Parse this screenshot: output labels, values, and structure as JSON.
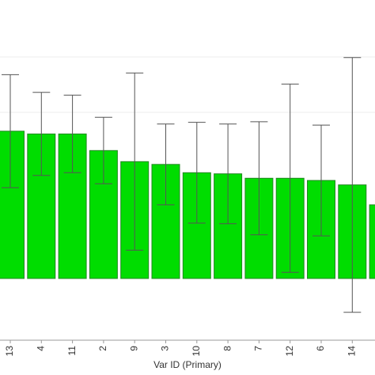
{
  "chart_data": {
    "type": "bar",
    "x_label": "Var ID (Primary)",
    "categories": [
      "13",
      "4",
      "11",
      "2",
      "9",
      "3",
      "10",
      "8",
      "7",
      "12",
      "6",
      "14",
      null
    ],
    "values": [
      2.66,
      2.61,
      2.61,
      2.31,
      2.11,
      2.06,
      1.91,
      1.89,
      1.81,
      1.81,
      1.77,
      1.69,
      1.33
    ],
    "errors": [
      1.02,
      0.75,
      0.7,
      0.6,
      1.6,
      0.73,
      0.91,
      0.9,
      1.02,
      1.7,
      1.0,
      2.3,
      null
    ],
    "color": "#00dd00",
    "ylim": [
      -1.1,
      5.0
    ]
  }
}
